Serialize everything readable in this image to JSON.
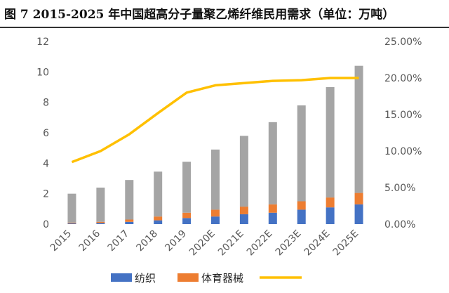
{
  "title": "图 7 2015-2025 年中国超高分子量聚乙烯纤维民用需求（单位：万吨）",
  "chart_data": {
    "type": "bar",
    "stacked": true,
    "categories": [
      "2015",
      "2016",
      "2017",
      "2018",
      "2019",
      "2020E",
      "2021E",
      "2022E",
      "2023E",
      "2024E",
      "2025E"
    ],
    "series": [
      {
        "name": "纺织",
        "color": "#4472C4",
        "axis": "left",
        "values": [
          0.05,
          0.08,
          0.15,
          0.25,
          0.4,
          0.5,
          0.65,
          0.75,
          0.95,
          1.1,
          1.3
        ]
      },
      {
        "name": "体育器械",
        "color": "#ED7D31",
        "axis": "left",
        "values": [
          0.05,
          0.07,
          0.15,
          0.25,
          0.35,
          0.45,
          0.5,
          0.55,
          0.55,
          0.65,
          0.75
        ]
      },
      {
        "name": "",
        "color": "#A5A5A5",
        "axis": "left",
        "values": [
          1.9,
          2.25,
          2.6,
          2.95,
          3.35,
          3.95,
          4.65,
          5.4,
          6.3,
          7.25,
          8.35
        ]
      },
      {
        "name": "",
        "color": "#FFC000",
        "axis": "right",
        "type": "line",
        "values": [
          8.5,
          10.0,
          12.3,
          15.2,
          18.0,
          19.0,
          19.3,
          19.6,
          19.7,
          20.0,
          20.0
        ]
      }
    ],
    "y_left": {
      "min": 0,
      "max": 12,
      "ticks": [
        "0",
        "2",
        "4",
        "6",
        "8",
        "10",
        "12"
      ]
    },
    "y_right": {
      "min": 0,
      "max": 25,
      "ticks": [
        "0.00%",
        "5.00%",
        "10.00%",
        "15.00%",
        "20.00%",
        "25.00%"
      ]
    },
    "legend_position": "bottom",
    "grid": false
  }
}
